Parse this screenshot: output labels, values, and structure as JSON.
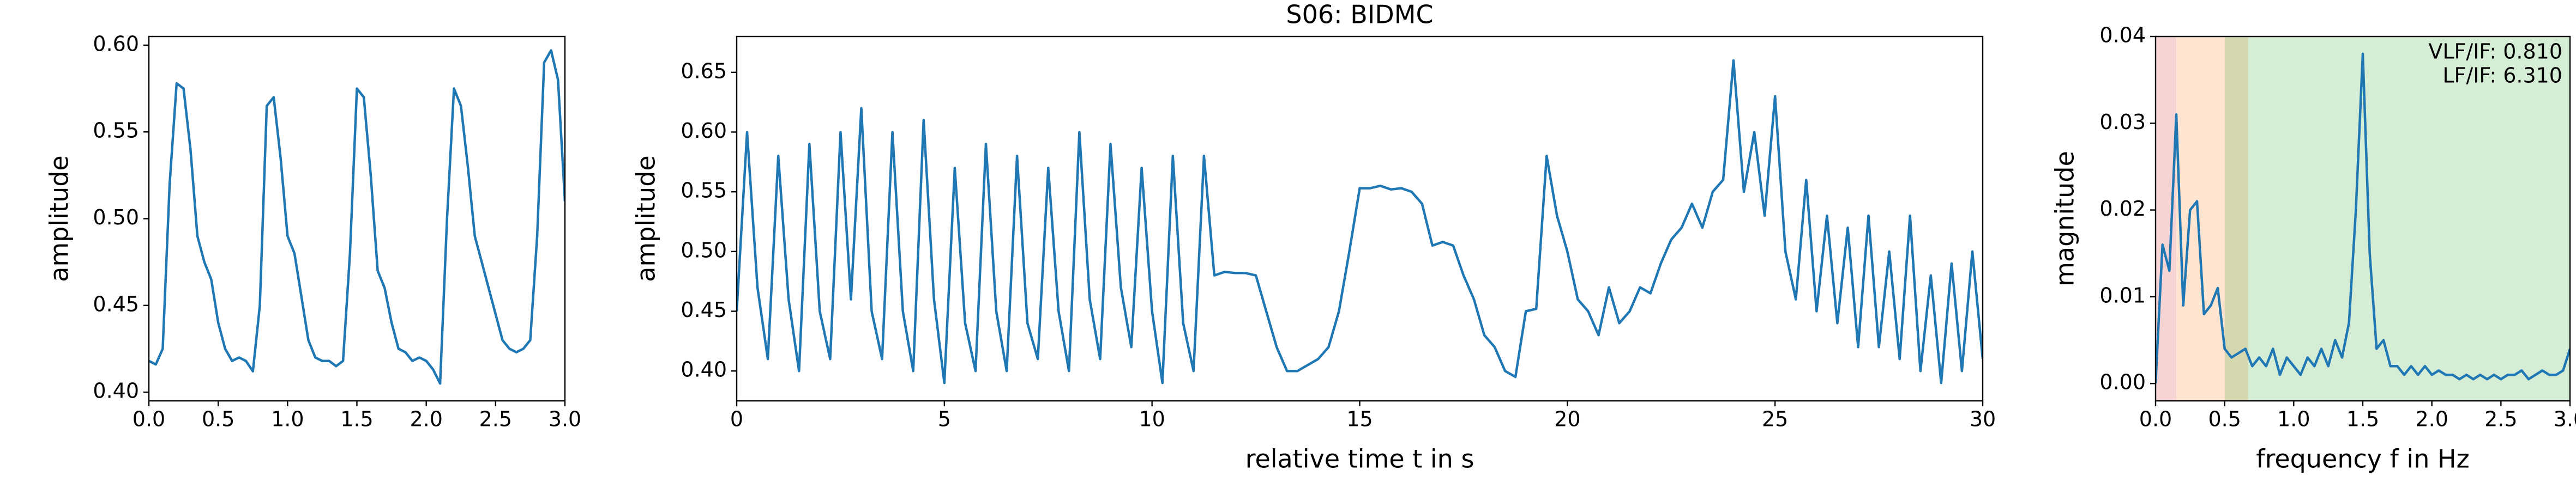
{
  "chart_data": [
    {
      "type": "line",
      "ylabel": "amplitude",
      "color": "#1f77b4",
      "x": [
        0.0,
        0.05,
        0.1,
        0.15,
        0.2,
        0.25,
        0.3,
        0.35,
        0.4,
        0.45,
        0.5,
        0.55,
        0.6,
        0.65,
        0.7,
        0.75,
        0.8,
        0.85,
        0.9,
        0.95,
        1.0,
        1.05,
        1.1,
        1.15,
        1.2,
        1.25,
        1.3,
        1.35,
        1.4,
        1.45,
        1.5,
        1.55,
        1.6,
        1.65,
        1.7,
        1.75,
        1.8,
        1.85,
        1.9,
        1.95,
        2.0,
        2.05,
        2.1,
        2.15,
        2.2,
        2.25,
        2.3,
        2.35,
        2.4,
        2.45,
        2.5,
        2.55,
        2.6,
        2.65,
        2.7,
        2.75,
        2.8,
        2.85,
        2.9,
        2.95,
        3.0
      ],
      "values": [
        0.418,
        0.416,
        0.425,
        0.52,
        0.578,
        0.575,
        0.54,
        0.49,
        0.475,
        0.465,
        0.44,
        0.425,
        0.418,
        0.42,
        0.418,
        0.412,
        0.45,
        0.565,
        0.57,
        0.535,
        0.49,
        0.48,
        0.455,
        0.43,
        0.42,
        0.418,
        0.418,
        0.415,
        0.418,
        0.48,
        0.575,
        0.57,
        0.525,
        0.47,
        0.46,
        0.44,
        0.425,
        0.423,
        0.418,
        0.42,
        0.418,
        0.413,
        0.405,
        0.5,
        0.575,
        0.565,
        0.53,
        0.49,
        0.475,
        0.46,
        0.445,
        0.43,
        0.425,
        0.423,
        0.425,
        0.43,
        0.49,
        0.59,
        0.597,
        0.58,
        0.51
      ],
      "xlim": [
        0,
        3
      ],
      "ylim": [
        0.395,
        0.605
      ],
      "xticks": [
        {
          "value": 0,
          "label": "0.0"
        },
        {
          "value": 0.5,
          "label": "0.5"
        },
        {
          "value": 1,
          "label": "1.0"
        },
        {
          "value": 1.5,
          "label": "1.5"
        },
        {
          "value": 2,
          "label": "2.0"
        },
        {
          "value": 2.5,
          "label": "2.5"
        },
        {
          "value": 3,
          "label": "3.0"
        }
      ],
      "yticks": [
        {
          "value": 0.4,
          "label": "0.40"
        },
        {
          "value": 0.45,
          "label": "0.45"
        },
        {
          "value": 0.5,
          "label": "0.50"
        },
        {
          "value": 0.55,
          "label": "0.55"
        },
        {
          "value": 0.6,
          "label": "0.60"
        }
      ]
    },
    {
      "type": "line",
      "title": "S06: BIDMC",
      "xlabel": "relative time t in s",
      "ylabel": "amplitude",
      "color": "#1f77b4",
      "x": [
        0,
        0.25,
        0.5,
        0.75,
        1,
        1.25,
        1.5,
        1.75,
        2,
        2.25,
        2.5,
        2.75,
        3,
        3.25,
        3.5,
        3.75,
        4,
        4.25,
        4.5,
        4.75,
        5,
        5.25,
        5.5,
        5.75,
        6,
        6.25,
        6.5,
        6.75,
        7,
        7.25,
        7.5,
        7.75,
        8,
        8.25,
        8.5,
        8.75,
        9,
        9.25,
        9.5,
        9.75,
        10,
        10.25,
        10.5,
        10.75,
        11,
        11.25,
        11.5,
        11.75,
        12,
        12.25,
        12.5,
        12.75,
        13,
        13.25,
        13.5,
        13.75,
        14,
        14.25,
        14.5,
        14.75,
        15,
        15.25,
        15.5,
        15.75,
        16,
        16.25,
        16.5,
        16.75,
        17,
        17.25,
        17.5,
        17.75,
        18,
        18.25,
        18.5,
        18.75,
        19,
        19.25,
        19.5,
        19.75,
        20,
        20.25,
        20.5,
        20.75,
        21,
        21.25,
        21.5,
        21.75,
        22,
        22.25,
        22.5,
        22.75,
        23,
        23.25,
        23.5,
        23.75,
        24,
        24.25,
        24.5,
        24.75,
        25,
        25.25,
        25.5,
        25.75,
        26,
        26.25,
        26.5,
        26.75,
        27,
        27.25,
        27.5,
        27.75,
        28,
        28.25,
        28.5,
        28.75,
        29,
        29.25,
        29.5,
        29.75,
        30
      ],
      "values": [
        0.45,
        0.6,
        0.47,
        0.41,
        0.58,
        0.46,
        0.4,
        0.59,
        0.45,
        0.41,
        0.6,
        0.46,
        0.62,
        0.45,
        0.41,
        0.6,
        0.45,
        0.4,
        0.61,
        0.46,
        0.39,
        0.57,
        0.44,
        0.4,
        0.59,
        0.45,
        0.4,
        0.58,
        0.44,
        0.41,
        0.57,
        0.45,
        0.4,
        0.6,
        0.46,
        0.41,
        0.59,
        0.47,
        0.42,
        0.57,
        0.45,
        0.39,
        0.58,
        0.44,
        0.4,
        0.58,
        0.48,
        0.483,
        0.482,
        0.482,
        0.48,
        0.45,
        0.42,
        0.4,
        0.4,
        0.405,
        0.41,
        0.42,
        0.45,
        0.5,
        0.553,
        0.553,
        0.555,
        0.552,
        0.553,
        0.55,
        0.54,
        0.505,
        0.508,
        0.505,
        0.48,
        0.46,
        0.43,
        0.42,
        0.4,
        0.395,
        0.45,
        0.452,
        0.58,
        0.53,
        0.5,
        0.46,
        0.45,
        0.43,
        0.47,
        0.44,
        0.45,
        0.47,
        0.465,
        0.49,
        0.51,
        0.52,
        0.54,
        0.52,
        0.55,
        0.56,
        0.66,
        0.55,
        0.6,
        0.53,
        0.63,
        0.5,
        0.46,
        0.56,
        0.45,
        0.53,
        0.44,
        0.52,
        0.42,
        0.53,
        0.42,
        0.5,
        0.41,
        0.53,
        0.4,
        0.48,
        0.39,
        0.49,
        0.4,
        0.5,
        0.41
      ],
      "xlim": [
        0,
        30
      ],
      "ylim": [
        0.375,
        0.68
      ],
      "xticks": [
        0,
        5,
        10,
        15,
        20,
        25,
        30
      ],
      "yticks": [
        {
          "value": 0.4,
          "label": "0.40"
        },
        {
          "value": 0.45,
          "label": "0.45"
        },
        {
          "value": 0.5,
          "label": "0.50"
        },
        {
          "value": 0.55,
          "label": "0.55"
        },
        {
          "value": 0.6,
          "label": "0.60"
        },
        {
          "value": 0.65,
          "label": "0.65"
        }
      ]
    },
    {
      "type": "line",
      "xlabel": "frequency f in Hz",
      "ylabel": "magnitude",
      "color": "#1f77b4",
      "annotations": [
        "VLF/IF: 0.810",
        "LF/IF: 6.310"
      ],
      "bands": [
        {
          "range": [
            0,
            0.15
          ],
          "color": "#d62728"
        },
        {
          "range": [
            0.15,
            0.67
          ],
          "color": "#ff7f0e"
        },
        {
          "range": [
            0.5,
            3
          ],
          "color": "#2ca02c"
        }
      ],
      "band_alpha": 0.2,
      "x": [
        0.0,
        0.05,
        0.1,
        0.15,
        0.2,
        0.25,
        0.3,
        0.35,
        0.4,
        0.45,
        0.5,
        0.55,
        0.6,
        0.65,
        0.7,
        0.75,
        0.8,
        0.85,
        0.9,
        0.95,
        1.0,
        1.05,
        1.1,
        1.15,
        1.2,
        1.25,
        1.3,
        1.35,
        1.4,
        1.45,
        1.5,
        1.55,
        1.6,
        1.65,
        1.7,
        1.75,
        1.8,
        1.85,
        1.9,
        1.95,
        2.0,
        2.05,
        2.1,
        2.15,
        2.2,
        2.25,
        2.3,
        2.35,
        2.4,
        2.45,
        2.5,
        2.55,
        2.6,
        2.65,
        2.7,
        2.75,
        2.8,
        2.85,
        2.9,
        2.95,
        3.0
      ],
      "values": [
        0.0,
        0.016,
        0.013,
        0.031,
        0.009,
        0.02,
        0.021,
        0.008,
        0.009,
        0.011,
        0.004,
        0.003,
        0.0035,
        0.004,
        0.002,
        0.003,
        0.002,
        0.004,
        0.001,
        0.003,
        0.002,
        0.001,
        0.003,
        0.002,
        0.004,
        0.002,
        0.005,
        0.003,
        0.007,
        0.02,
        0.038,
        0.015,
        0.004,
        0.005,
        0.002,
        0.002,
        0.001,
        0.002,
        0.001,
        0.002,
        0.001,
        0.0015,
        0.001,
        0.001,
        0.0005,
        0.001,
        0.0005,
        0.001,
        0.0005,
        0.001,
        0.0005,
        0.001,
        0.001,
        0.0015,
        0.0005,
        0.001,
        0.0015,
        0.001,
        0.001,
        0.0015,
        0.004
      ],
      "xlim": [
        0,
        3
      ],
      "ylim": [
        -0.002,
        0.04
      ],
      "xticks": [
        {
          "value": 0,
          "label": "0.0"
        },
        {
          "value": 0.5,
          "label": "0.5"
        },
        {
          "value": 1,
          "label": "1.0"
        },
        {
          "value": 1.5,
          "label": "1.5"
        },
        {
          "value": 2,
          "label": "2.0"
        },
        {
          "value": 2.5,
          "label": "2.5"
        },
        {
          "value": 3,
          "label": "3.0"
        }
      ],
      "yticks": [
        {
          "value": 0,
          "label": "0.00"
        },
        {
          "value": 0.01,
          "label": "0.01"
        },
        {
          "value": 0.02,
          "label": "0.02"
        },
        {
          "value": 0.03,
          "label": "0.03"
        },
        {
          "value": 0.04,
          "label": "0.04"
        }
      ]
    }
  ]
}
